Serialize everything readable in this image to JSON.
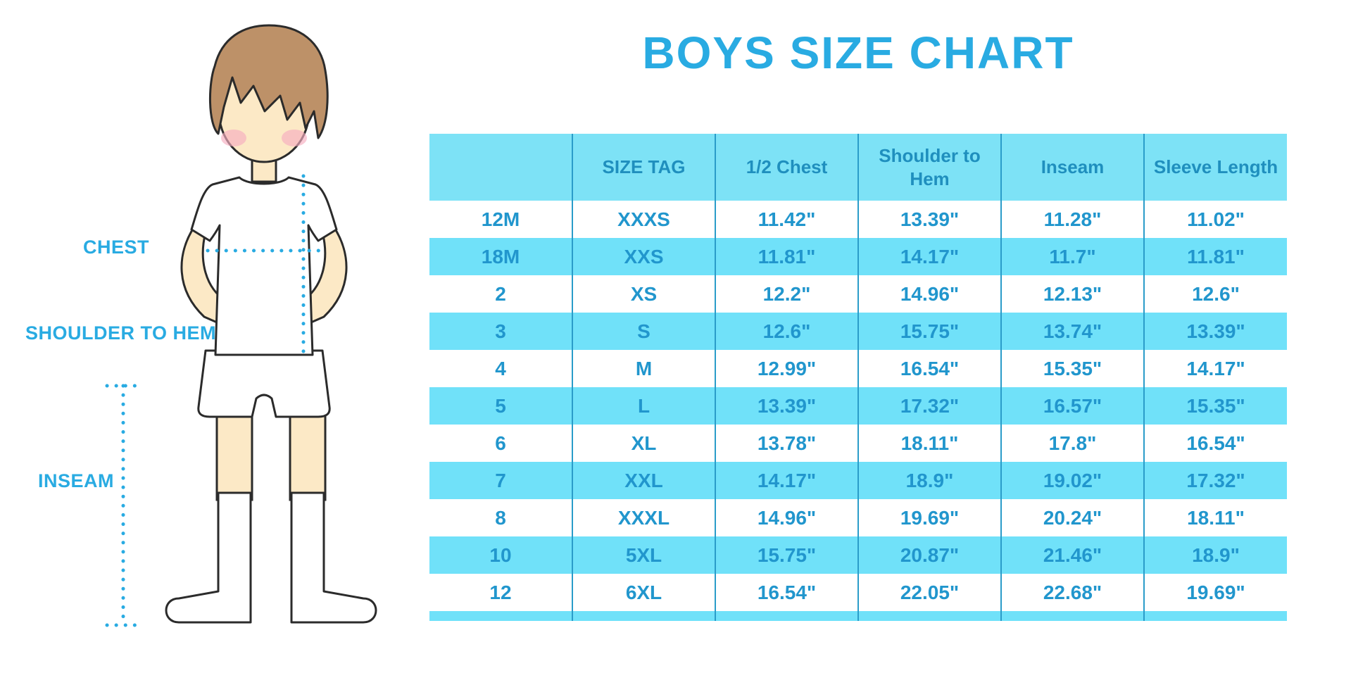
{
  "title": "BOYS SIZE CHART",
  "colors": {
    "accent": "#29ABE2",
    "header_bg": "#7DE2F6",
    "row_alt_bg": "#70E1F9",
    "header_text": "#1F8FBE",
    "cell_text": "#2196CD",
    "divider": "#2A9CC9",
    "skin": "#FCE9C6",
    "hair": "#BD9168",
    "blush": "#F6AEC0",
    "outline": "#2B2B2B"
  },
  "figure": {
    "illustration": "boy-wearing-tshirt-shorts-and-knee-socks",
    "labels": [
      {
        "text": "CHEST"
      },
      {
        "text": "SHOULDER TO HEM"
      },
      {
        "text": "INSEAM"
      }
    ]
  },
  "chart_data": {
    "type": "table",
    "title": "BOYS SIZE CHART",
    "columns": [
      "",
      "SIZE TAG",
      "1/2 Chest",
      "Shoulder to Hem",
      "Inseam",
      "Sleeve Length"
    ],
    "rows": [
      [
        "12M",
        "XXXS",
        "11.42\"",
        "13.39\"",
        "11.28\"",
        "11.02\""
      ],
      [
        "18M",
        "XXS",
        "11.81\"",
        "14.17\"",
        "11.7\"",
        "11.81\""
      ],
      [
        "2",
        "XS",
        "12.2\"",
        "14.96\"",
        "12.13\"",
        "12.6\""
      ],
      [
        "3",
        "S",
        "12.6\"",
        "15.75\"",
        "13.74\"",
        "13.39\""
      ],
      [
        "4",
        "M",
        "12.99\"",
        "16.54\"",
        "15.35\"",
        "14.17\""
      ],
      [
        "5",
        "L",
        "13.39\"",
        "17.32\"",
        "16.57\"",
        "15.35\""
      ],
      [
        "6",
        "XL",
        "13.78\"",
        "18.11\"",
        "17.8\"",
        "16.54\""
      ],
      [
        "7",
        "XXL",
        "14.17\"",
        "18.9\"",
        "19.02\"",
        "17.32\""
      ],
      [
        "8",
        "XXXL",
        "14.96\"",
        "19.69\"",
        "20.24\"",
        "18.11\""
      ],
      [
        "10",
        "5XL",
        "15.75\"",
        "20.87\"",
        "21.46\"",
        "18.9\""
      ],
      [
        "12",
        "6XL",
        "16.54\"",
        "22.05\"",
        "22.68\"",
        "19.69\""
      ]
    ],
    "row_striping": "white / light-cyan alternating, first data row white",
    "units": "inches",
    "legend_position": "none",
    "grid": "vertical column dividers only"
  }
}
